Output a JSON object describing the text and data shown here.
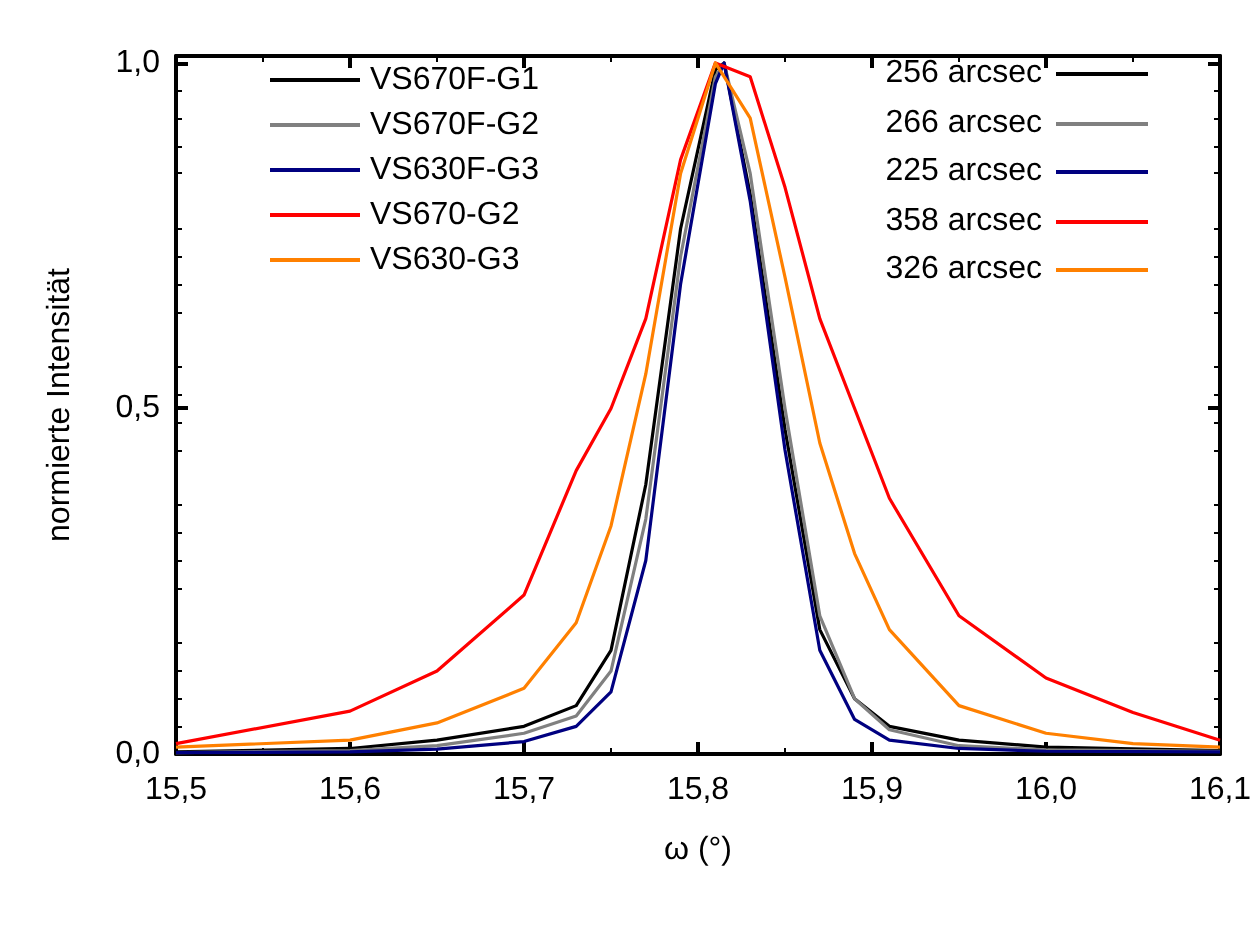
{
  "chart_data": {
    "type": "line",
    "xlabel": "ω (°)",
    "ylabel": "normierte Intensität",
    "xlim": [
      15.5,
      16.1
    ],
    "xticks": [
      {
        "value": 15.5,
        "label": "15,5"
      },
      {
        "value": 15.6,
        "label": "15,6"
      },
      {
        "value": 15.7,
        "label": "15,7"
      },
      {
        "value": 15.8,
        "label": "15,8"
      },
      {
        "value": 15.9,
        "label": "15,9"
      },
      {
        "value": 16.0,
        "label": "16,0"
      },
      {
        "value": 16.1,
        "label": "16,1"
      }
    ],
    "ylim": [
      0,
      1.01
    ],
    "yticks": [
      {
        "value": 0,
        "label": "0,0"
      },
      {
        "value": 0.5,
        "label": "0,5"
      },
      {
        "value": 1.0,
        "label": "1,0"
      }
    ],
    "grid": false,
    "legend": "top",
    "marker": "none",
    "line_style": "solid",
    "annotations": [
      "256 arcsec",
      "266 arcsec",
      "225 arcsec",
      "358 arcsec",
      "326 arcsec"
    ],
    "series": [
      {
        "name": "VS670F-G1",
        "color": "#000000",
        "x": [
          15.5,
          15.6,
          15.65,
          15.7,
          15.73,
          15.75,
          15.77,
          15.79,
          15.81,
          15.815,
          15.83,
          15.85,
          15.87,
          15.89,
          15.91,
          15.95,
          16.0,
          16.1
        ],
        "values": [
          0.003,
          0.008,
          0.02,
          0.04,
          0.07,
          0.15,
          0.39,
          0.76,
          0.99,
          1.0,
          0.81,
          0.47,
          0.18,
          0.08,
          0.04,
          0.02,
          0.01,
          0.005
        ]
      },
      {
        "name": "VS670F-G2",
        "color": "#808080",
        "x": [
          15.5,
          15.6,
          15.65,
          15.7,
          15.73,
          15.75,
          15.77,
          15.79,
          15.81,
          15.815,
          15.83,
          15.85,
          15.87,
          15.89,
          15.91,
          15.95,
          16.0,
          16.1
        ],
        "values": [
          0.002,
          0.005,
          0.012,
          0.03,
          0.055,
          0.12,
          0.34,
          0.72,
          0.98,
          1.0,
          0.84,
          0.5,
          0.2,
          0.08,
          0.035,
          0.012,
          0.006,
          0.004
        ]
      },
      {
        "name": "VS630F-G3",
        "color": "#000080",
        "x": [
          15.5,
          15.6,
          15.65,
          15.7,
          15.73,
          15.75,
          15.77,
          15.79,
          15.81,
          15.815,
          15.83,
          15.85,
          15.87,
          15.89,
          15.91,
          15.95,
          16.0,
          16.1
        ],
        "values": [
          0.002,
          0.003,
          0.007,
          0.018,
          0.04,
          0.09,
          0.28,
          0.68,
          0.97,
          1.0,
          0.8,
          0.44,
          0.15,
          0.05,
          0.02,
          0.008,
          0.004,
          0.003
        ]
      },
      {
        "name": "VS670-G2",
        "color": "#ff0000",
        "x": [
          15.5,
          15.6,
          15.65,
          15.7,
          15.73,
          15.75,
          15.77,
          15.79,
          15.81,
          15.83,
          15.85,
          15.87,
          15.89,
          15.91,
          15.95,
          16.0,
          16.05,
          16.1
        ],
        "values": [
          0.015,
          0.062,
          0.12,
          0.23,
          0.41,
          0.5,
          0.63,
          0.86,
          1.0,
          0.98,
          0.82,
          0.63,
          0.5,
          0.37,
          0.2,
          0.11,
          0.06,
          0.02
        ]
      },
      {
        "name": "VS630-G3",
        "color": "#ff8000",
        "x": [
          15.5,
          15.6,
          15.65,
          15.7,
          15.73,
          15.75,
          15.77,
          15.79,
          15.81,
          15.83,
          15.85,
          15.87,
          15.89,
          15.91,
          15.95,
          16.0,
          16.05,
          16.1
        ],
        "values": [
          0.01,
          0.02,
          0.045,
          0.095,
          0.19,
          0.33,
          0.55,
          0.84,
          1.0,
          0.92,
          0.69,
          0.45,
          0.29,
          0.18,
          0.07,
          0.03,
          0.015,
          0.01
        ]
      }
    ]
  }
}
